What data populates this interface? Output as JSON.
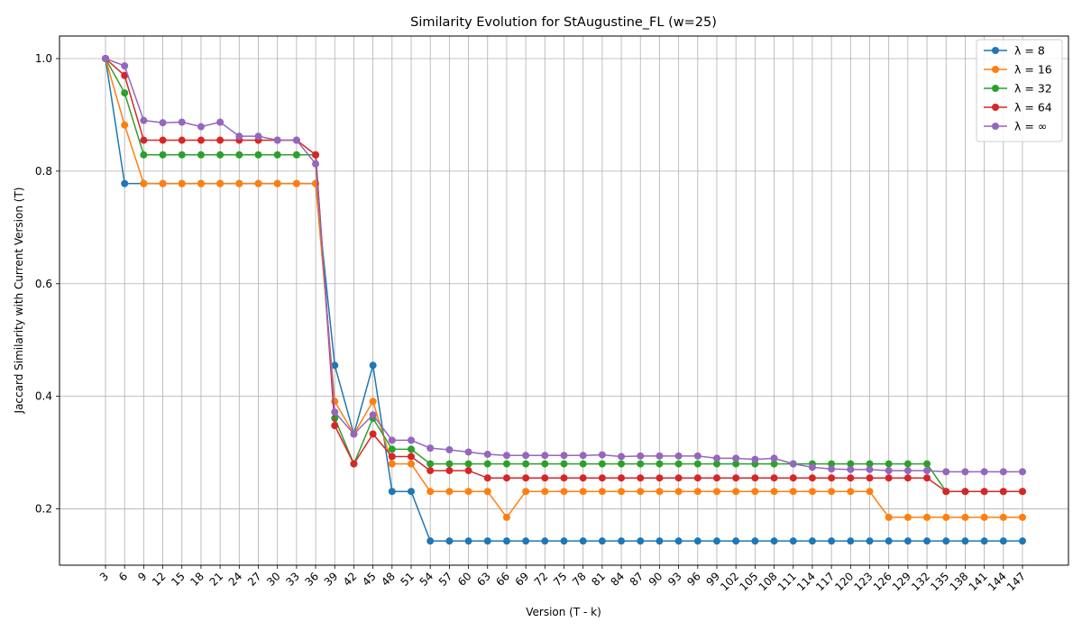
{
  "chart_data": {
    "type": "line",
    "title": "Similarity Evolution for StAugustine_FL (w=25)",
    "xlabel": "Version (T - k)",
    "ylabel": "Jaccard Similarity with Current Version (T)",
    "x": [
      3,
      6,
      9,
      12,
      15,
      18,
      21,
      24,
      27,
      30,
      33,
      36,
      39,
      42,
      45,
      48,
      51,
      54,
      57,
      60,
      63,
      66,
      69,
      72,
      75,
      78,
      81,
      84,
      87,
      90,
      93,
      96,
      99,
      102,
      105,
      108,
      111,
      114,
      117,
      120,
      123,
      126,
      129,
      132,
      135,
      138,
      141,
      144,
      147
    ],
    "ylim": [
      0.1,
      1.04
    ],
    "yticks": [
      0.2,
      0.4,
      0.6,
      0.8,
      1.0
    ],
    "grid": true,
    "legend_position": "top-right",
    "series": [
      {
        "name": "λ = 8",
        "color": "#1f77b4",
        "values": [
          1.0,
          0.778,
          0.778,
          0.778,
          0.778,
          0.778,
          0.778,
          0.778,
          0.778,
          0.778,
          0.778,
          0.778,
          0.455,
          0.333,
          0.455,
          0.231,
          0.231,
          0.143,
          0.143,
          0.143,
          0.143,
          0.143,
          0.143,
          0.143,
          0.143,
          0.143,
          0.143,
          0.143,
          0.143,
          0.143,
          0.143,
          0.143,
          0.143,
          0.143,
          0.143,
          0.143,
          0.143,
          0.143,
          0.143,
          0.143,
          0.143,
          0.143,
          0.143,
          0.143,
          0.143,
          0.143,
          0.143,
          0.143,
          0.143
        ]
      },
      {
        "name": "λ = 16",
        "color": "#ff7f0e",
        "values": [
          1.0,
          0.882,
          0.778,
          0.778,
          0.778,
          0.778,
          0.778,
          0.778,
          0.778,
          0.778,
          0.778,
          0.778,
          0.391,
          0.333,
          0.391,
          0.28,
          0.28,
          0.231,
          0.231,
          0.231,
          0.231,
          0.185,
          0.231,
          0.231,
          0.231,
          0.231,
          0.231,
          0.231,
          0.231,
          0.231,
          0.231,
          0.231,
          0.231,
          0.231,
          0.231,
          0.231,
          0.231,
          0.231,
          0.231,
          0.231,
          0.231,
          0.185,
          0.185,
          0.185,
          0.185,
          0.185,
          0.185,
          0.185,
          0.185
        ]
      },
      {
        "name": "λ = 32",
        "color": "#2ca02c",
        "values": [
          1.0,
          0.939,
          0.829,
          0.829,
          0.829,
          0.829,
          0.829,
          0.829,
          0.829,
          0.829,
          0.829,
          0.829,
          0.361,
          0.28,
          0.361,
          0.306,
          0.306,
          0.28,
          0.28,
          0.28,
          0.28,
          0.28,
          0.28,
          0.28,
          0.28,
          0.28,
          0.28,
          0.28,
          0.28,
          0.28,
          0.28,
          0.28,
          0.28,
          0.28,
          0.28,
          0.28,
          0.28,
          0.28,
          0.28,
          0.28,
          0.28,
          0.28,
          0.28,
          0.28,
          0.231,
          0.231,
          0.231,
          0.231,
          0.231
        ]
      },
      {
        "name": "λ = 64",
        "color": "#d62728",
        "values": [
          1.0,
          0.97,
          0.855,
          0.855,
          0.855,
          0.855,
          0.855,
          0.855,
          0.855,
          0.855,
          0.855,
          0.829,
          0.348,
          0.28,
          0.333,
          0.293,
          0.293,
          0.268,
          0.268,
          0.268,
          0.255,
          0.255,
          0.255,
          0.255,
          0.255,
          0.255,
          0.255,
          0.255,
          0.255,
          0.255,
          0.255,
          0.255,
          0.255,
          0.255,
          0.255,
          0.255,
          0.255,
          0.255,
          0.255,
          0.255,
          0.255,
          0.255,
          0.255,
          0.255,
          0.231,
          0.231,
          0.231,
          0.231,
          0.231
        ]
      },
      {
        "name": "λ = ∞",
        "color": "#9467bd",
        "values": [
          1.0,
          0.987,
          0.89,
          0.886,
          0.887,
          0.879,
          0.887,
          0.862,
          0.862,
          0.855,
          0.855,
          0.813,
          0.372,
          0.333,
          0.367,
          0.322,
          0.322,
          0.308,
          0.305,
          0.301,
          0.297,
          0.295,
          0.295,
          0.295,
          0.295,
          0.295,
          0.296,
          0.293,
          0.294,
          0.294,
          0.294,
          0.294,
          0.29,
          0.29,
          0.288,
          0.29,
          0.28,
          0.274,
          0.271,
          0.27,
          0.27,
          0.268,
          0.268,
          0.268,
          0.266,
          0.266,
          0.266,
          0.266,
          0.266
        ]
      }
    ]
  }
}
